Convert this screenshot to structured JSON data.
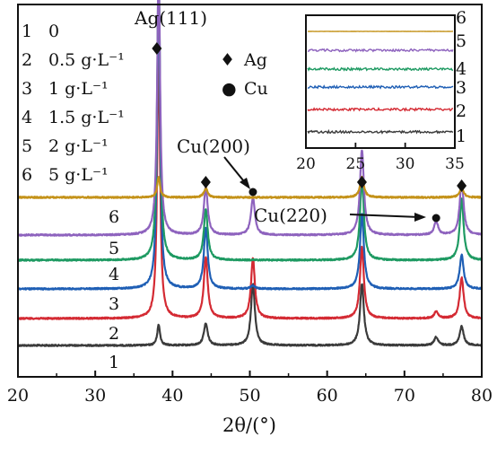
{
  "chart_data": {
    "type": "line",
    "xlabel": "2θ/(°)",
    "xlim": [
      20,
      80
    ],
    "xticks": [
      "20",
      "30",
      "40",
      "50",
      "60",
      "70",
      "80"
    ],
    "legend": [
      {
        "num": "1",
        "label": "0"
      },
      {
        "num": "2",
        "label": "0.5 g·L⁻¹"
      },
      {
        "num": "3",
        "label": "1 g·L⁻¹"
      },
      {
        "num": "4",
        "label": "1.5 g·L⁻¹"
      },
      {
        "num": "5",
        "label": "2 g·L⁻¹"
      },
      {
        "num": "6",
        "label": "5 g·L⁻¹"
      }
    ],
    "marker_legend": [
      {
        "symbol": "♦",
        "label": "Ag"
      },
      {
        "symbol": "●",
        "label": "Cu"
      }
    ],
    "annotations": [
      {
        "text": "Ag(111)",
        "x": 38.2
      },
      {
        "text": "Cu(200)",
        "x": 50.4
      },
      {
        "text": "Cu(220)",
        "x": 74.1
      }
    ],
    "ag_peak_markers_x": [
      38.2,
      44.3,
      64.5,
      77.4
    ],
    "cu_peak_markers_x": [
      50.4,
      74.1
    ],
    "series": [
      {
        "id": "1",
        "color": "#3b3b3b",
        "peaks": [
          [
            38.2,
            0.3
          ],
          [
            44.3,
            0.32
          ],
          [
            50.4,
            0.9
          ],
          [
            64.5,
            0.9
          ],
          [
            74.1,
            0.12
          ],
          [
            77.4,
            0.28
          ]
        ]
      },
      {
        "id": "2",
        "color": "#d42a33",
        "peaks": [
          [
            38.2,
            4.0
          ],
          [
            44.3,
            0.9
          ],
          [
            50.4,
            0.88
          ],
          [
            64.5,
            1.05
          ],
          [
            74.1,
            0.1
          ],
          [
            77.4,
            0.6
          ]
        ]
      },
      {
        "id": "3",
        "color": "#1f5fb5",
        "peaks": [
          [
            38.2,
            4.5
          ],
          [
            44.3,
            0.9
          ],
          [
            50.4,
            0.05
          ],
          [
            64.5,
            1.1
          ],
          [
            77.4,
            0.5
          ]
        ]
      },
      {
        "id": "4",
        "color": "#1e9a62",
        "peaks": [
          [
            38.2,
            4.3
          ],
          [
            44.3,
            0.75
          ],
          [
            64.5,
            1.2
          ],
          [
            77.4,
            0.9
          ]
        ]
      },
      {
        "id": "5",
        "color": "#8e63be",
        "peaks": [
          [
            38.2,
            3.95
          ],
          [
            44.3,
            0.7
          ],
          [
            50.4,
            0.55
          ],
          [
            64.5,
            1.25
          ],
          [
            74.1,
            0.2
          ],
          [
            77.4,
            0.8
          ]
        ]
      },
      {
        "id": "6",
        "color": "#c49219",
        "peaks": [
          [
            38.2,
            0.3
          ],
          [
            44.3,
            0.13
          ],
          [
            64.5,
            0.3
          ],
          [
            77.4,
            0.14
          ]
        ]
      }
    ],
    "inset": {
      "xlim": [
        20,
        35
      ],
      "xticks": [
        "20",
        "25",
        "30",
        "35"
      ],
      "series_labels": [
        "6",
        "5",
        "4",
        "3",
        "2",
        "1"
      ]
    }
  }
}
